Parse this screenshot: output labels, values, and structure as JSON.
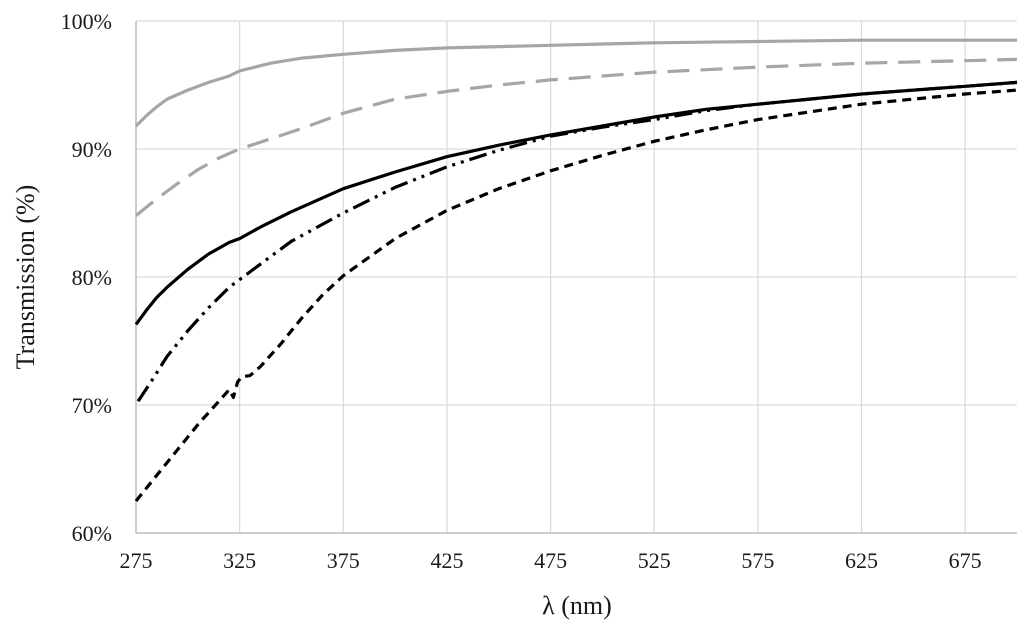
{
  "chart_data": {
    "type": "line",
    "title": "",
    "xlabel": "λ (nm)",
    "ylabel": "Transmission (%)",
    "xlim": [
      275,
      700
    ],
    "ylim": [
      60,
      100
    ],
    "x_ticks": [
      275,
      325,
      375,
      425,
      475,
      525,
      575,
      625,
      675
    ],
    "x_tick_labels": [
      "275",
      "325",
      "375",
      "425",
      "475",
      "525",
      "575",
      "625",
      "675"
    ],
    "y_ticks": [
      60,
      70,
      80,
      90,
      100
    ],
    "y_tick_labels": [
      "60%",
      "70%",
      "80%",
      "90%",
      "100%"
    ],
    "grid": true,
    "legend": "none",
    "series": [
      {
        "color": "#a6a6a6",
        "dash": "solid",
        "points": [
          [
            275,
            91.8
          ],
          [
            280,
            92.6
          ],
          [
            285,
            93.3
          ],
          [
            290,
            93.9
          ],
          [
            300,
            94.6
          ],
          [
            310,
            95.2
          ],
          [
            320,
            95.7
          ],
          [
            325,
            96.1
          ],
          [
            340,
            96.7
          ],
          [
            355,
            97.1
          ],
          [
            375,
            97.4
          ],
          [
            400,
            97.7
          ],
          [
            425,
            97.9
          ],
          [
            450,
            98.0
          ],
          [
            475,
            98.1
          ],
          [
            500,
            98.2
          ],
          [
            525,
            98.3
          ],
          [
            575,
            98.4
          ],
          [
            625,
            98.5
          ],
          [
            675,
            98.5
          ],
          [
            700,
            98.5
          ]
        ]
      },
      {
        "color": "#a6a6a6",
        "dash": "long-dash",
        "points": [
          [
            275,
            84.8
          ],
          [
            285,
            86.1
          ],
          [
            295,
            87.3
          ],
          [
            305,
            88.4
          ],
          [
            315,
            89.3
          ],
          [
            325,
            90.0
          ],
          [
            340,
            90.8
          ],
          [
            355,
            91.6
          ],
          [
            375,
            92.8
          ],
          [
            400,
            93.9
          ],
          [
            425,
            94.5
          ],
          [
            450,
            95.0
          ],
          [
            475,
            95.4
          ],
          [
            500,
            95.7
          ],
          [
            525,
            96.0
          ],
          [
            575,
            96.4
          ],
          [
            625,
            96.7
          ],
          [
            675,
            96.9
          ],
          [
            700,
            97.0
          ]
        ]
      },
      {
        "color": "#000000",
        "dash": "solid",
        "points": [
          [
            275,
            76.3
          ],
          [
            280,
            77.4
          ],
          [
            285,
            78.4
          ],
          [
            290,
            79.2
          ],
          [
            300,
            80.6
          ],
          [
            310,
            81.8
          ],
          [
            320,
            82.7
          ],
          [
            325,
            83.0
          ],
          [
            335,
            83.9
          ],
          [
            350,
            85.1
          ],
          [
            375,
            86.9
          ],
          [
            400,
            88.2
          ],
          [
            425,
            89.4
          ],
          [
            450,
            90.3
          ],
          [
            475,
            91.1
          ],
          [
            500,
            91.8
          ],
          [
            525,
            92.5
          ],
          [
            550,
            93.1
          ],
          [
            575,
            93.5
          ],
          [
            600,
            93.9
          ],
          [
            625,
            94.3
          ],
          [
            650,
            94.6
          ],
          [
            675,
            94.9
          ],
          [
            700,
            95.2
          ]
        ]
      },
      {
        "color": "#000000",
        "dash": "dash-dot-dot",
        "points": [
          [
            276,
            70.3
          ],
          [
            283,
            72.0
          ],
          [
            290,
            73.8
          ],
          [
            300,
            75.8
          ],
          [
            310,
            77.6
          ],
          [
            320,
            79.2
          ],
          [
            330,
            80.4
          ],
          [
            340,
            81.6
          ],
          [
            350,
            82.8
          ],
          [
            375,
            85.0
          ],
          [
            400,
            87.0
          ],
          [
            425,
            88.6
          ],
          [
            450,
            89.9
          ],
          [
            475,
            91.0
          ],
          [
            500,
            91.7
          ],
          [
            525,
            92.3
          ],
          [
            550,
            93.0
          ],
          [
            575,
            93.5
          ],
          [
            600,
            93.9
          ],
          [
            625,
            94.3
          ],
          [
            650,
            94.6
          ],
          [
            675,
            94.9
          ],
          [
            700,
            95.2
          ]
        ]
      },
      {
        "color": "#000000",
        "dash": "short-dash",
        "points": [
          [
            275,
            62.5
          ],
          [
            285,
            64.5
          ],
          [
            295,
            66.5
          ],
          [
            305,
            68.5
          ],
          [
            315,
            70.3
          ],
          [
            320,
            71.2
          ],
          [
            322,
            70.6
          ],
          [
            324,
            71.8
          ],
          [
            326,
            72.2
          ],
          [
            330,
            72.3
          ],
          [
            335,
            73.0
          ],
          [
            345,
            74.8
          ],
          [
            355,
            76.8
          ],
          [
            365,
            78.6
          ],
          [
            375,
            80.1
          ],
          [
            400,
            83.0
          ],
          [
            425,
            85.2
          ],
          [
            450,
            86.9
          ],
          [
            475,
            88.3
          ],
          [
            500,
            89.5
          ],
          [
            525,
            90.6
          ],
          [
            550,
            91.5
          ],
          [
            575,
            92.3
          ],
          [
            600,
            92.9
          ],
          [
            625,
            93.5
          ],
          [
            650,
            93.9
          ],
          [
            675,
            94.3
          ],
          [
            700,
            94.6
          ]
        ]
      }
    ]
  }
}
